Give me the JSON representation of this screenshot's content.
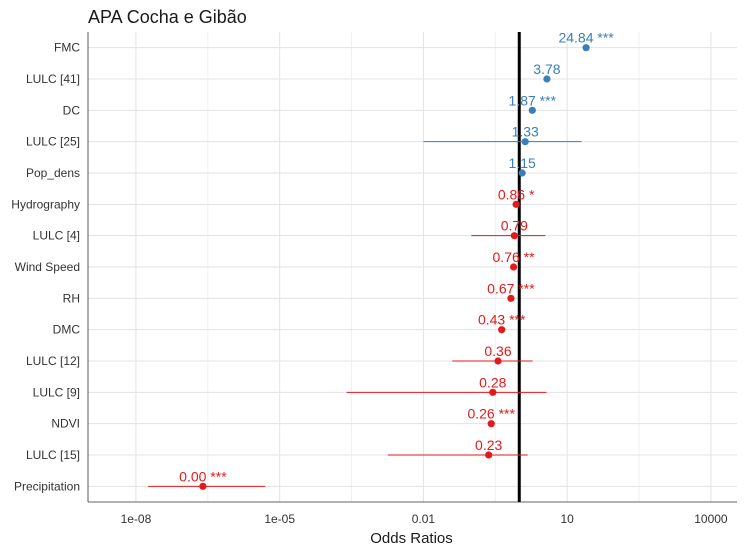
{
  "chart_data": {
    "type": "forest",
    "title": "APA Cocha e Gibão",
    "xlabel": "Odds Ratios",
    "ylabel": "",
    "x_scale": "log10",
    "xlim": [
      1e-09,
      35000
    ],
    "x_ticks": [
      1e-08,
      1e-05,
      0.01,
      10,
      10000
    ],
    "x_tick_labels": [
      "1e-08",
      "1e-05",
      "0.01",
      "10",
      "10000"
    ],
    "reference_line": 1,
    "grid": true,
    "colors": {
      "positive": "#3A7FBB",
      "negative": "#E31A1C",
      "reference": "#000000"
    },
    "rows": [
      {
        "term": "FMC",
        "or": 24.84,
        "ci": null,
        "sig": "***",
        "label": "24.84 ***",
        "effect": "positive"
      },
      {
        "term": "LULC [41]",
        "or": 3.78,
        "ci": null,
        "sig": "",
        "label": "3.78",
        "effect": "positive"
      },
      {
        "term": "DC",
        "or": 1.87,
        "ci": null,
        "sig": "***",
        "label": "1.87 ***",
        "effect": "positive"
      },
      {
        "term": "LULC [25]",
        "or": 1.33,
        "ci": [
          0.01,
          20
        ],
        "sig": "",
        "label": "1.33",
        "effect": "positive"
      },
      {
        "term": "Pop_dens",
        "or": 1.15,
        "ci": null,
        "sig": "",
        "label": "1.15",
        "effect": "positive"
      },
      {
        "term": "Hydrography",
        "or": 0.86,
        "ci": null,
        "sig": "*",
        "label": "0.86 *",
        "effect": "negative"
      },
      {
        "term": "LULC [4]",
        "or": 0.79,
        "ci": [
          0.1,
          3.5
        ],
        "sig": "",
        "label": "0.79",
        "effect": "negative"
      },
      {
        "term": "Wind Speed",
        "or": 0.76,
        "ci": null,
        "sig": "**",
        "label": "0.76 **",
        "effect": "negative"
      },
      {
        "term": "RH",
        "or": 0.67,
        "ci": null,
        "sig": "***",
        "label": "0.67 ***",
        "effect": "negative"
      },
      {
        "term": "DMC",
        "or": 0.43,
        "ci": null,
        "sig": "***",
        "label": "0.43 ***",
        "effect": "negative"
      },
      {
        "term": "LULC [12]",
        "or": 0.36,
        "ci": [
          0.04,
          1.9
        ],
        "sig": "",
        "label": "0.36",
        "effect": "negative"
      },
      {
        "term": "LULC [9]",
        "or": 0.28,
        "ci": [
          0.00025,
          3.7
        ],
        "sig": "",
        "label": "0.28",
        "effect": "negative"
      },
      {
        "term": "NDVI",
        "or": 0.26,
        "ci": null,
        "sig": "***",
        "label": "0.26 ***",
        "effect": "negative"
      },
      {
        "term": "LULC [15]",
        "or": 0.23,
        "ci": [
          0.0018,
          1.5
        ],
        "sig": "",
        "label": "0.23",
        "effect": "negative"
      },
      {
        "term": "Precipitation",
        "or": 2.5e-07,
        "ci": [
          1.8e-08,
          5e-06
        ],
        "sig": "***",
        "label": "0.00 ***",
        "effect": "negative"
      }
    ]
  }
}
